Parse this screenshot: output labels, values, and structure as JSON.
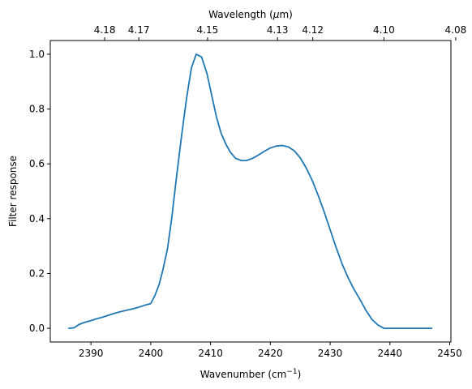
{
  "chart_data": {
    "type": "line",
    "title": "",
    "xlabel": "Wavenumber (cm",
    "xlabel_sup": "−1",
    "xlabel_close": ")",
    "ylabel": "Filter response",
    "top_xlabel_prefix": "Wavelength (",
    "top_xlabel_mu": "μ",
    "top_xlabel_suffix": "m)",
    "xlim": [
      2383.2,
      2450.2
    ],
    "ylim": [
      -0.05,
      1.05
    ],
    "xticks": [
      2390,
      2400,
      2410,
      2420,
      2430,
      2440,
      2450
    ],
    "xtick_labels": [
      "2390",
      "2400",
      "2410",
      "2420",
      "2430",
      "2440",
      "2450"
    ],
    "yticks": [
      0.0,
      0.2,
      0.4,
      0.6,
      0.8,
      1.0
    ],
    "ytick_labels": [
      "0.0",
      "0.2",
      "0.4",
      "0.6",
      "0.8",
      "1.0"
    ],
    "top_ticks": [
      {
        "label": "4.18",
        "x": 2392.3
      },
      {
        "label": "4.17",
        "x": 2398.0
      },
      {
        "label": "4.15",
        "x": 2409.5
      },
      {
        "label": "4.13",
        "x": 2421.2
      },
      {
        "label": "4.12",
        "x": 2427.1
      },
      {
        "label": "4.10",
        "x": 2439.0
      },
      {
        "label": "4.08",
        "x": 2451.0
      }
    ],
    "grid": false,
    "line_color": "#1f77b4",
    "series": [
      {
        "x": [
          2386.3,
          2387.2,
          2388.0,
          2389.0,
          2390.0,
          2391.0,
          2392.0,
          2393.0,
          2394.0,
          2395.0,
          2396.0,
          2397.0,
          2398.0,
          2399.0,
          2400.0,
          2400.7,
          2401.4,
          2402.0,
          2402.8,
          2403.5,
          2404.3,
          2405.2,
          2406.0,
          2406.8,
          2407.6,
          2408.5,
          2409.4,
          2410.2,
          2411.0,
          2411.8,
          2412.6,
          2413.4,
          2414.2,
          2415.2,
          2416.0,
          2417.0,
          2418.0,
          2419.0,
          2420.0,
          2421.0,
          2422.0,
          2423.0,
          2424.0,
          2425.0,
          2426.0,
          2427.0,
          2428.0,
          2429.0,
          2430.0,
          2431.0,
          2432.0,
          2433.0,
          2434.0,
          2435.0,
          2436.0,
          2437.0,
          2438.0,
          2439.0,
          2440.0,
          2441.0,
          2442.0,
          2443.0,
          2444.0,
          2445.0,
          2446.0,
          2447.0
        ],
        "values": [
          0.0,
          0.002,
          0.014,
          0.022,
          0.028,
          0.035,
          0.041,
          0.048,
          0.055,
          0.061,
          0.066,
          0.071,
          0.077,
          0.084,
          0.09,
          0.12,
          0.16,
          0.21,
          0.29,
          0.4,
          0.55,
          0.71,
          0.84,
          0.95,
          1.0,
          0.99,
          0.93,
          0.85,
          0.77,
          0.71,
          0.67,
          0.64,
          0.62,
          0.612,
          0.612,
          0.62,
          0.632,
          0.646,
          0.658,
          0.665,
          0.667,
          0.662,
          0.648,
          0.622,
          0.585,
          0.54,
          0.485,
          0.425,
          0.36,
          0.295,
          0.235,
          0.185,
          0.142,
          0.105,
          0.065,
          0.032,
          0.012,
          0.0,
          0.0,
          0.0,
          0.0,
          0.0,
          0.0,
          0.0,
          0.0,
          0.0
        ]
      }
    ]
  }
}
